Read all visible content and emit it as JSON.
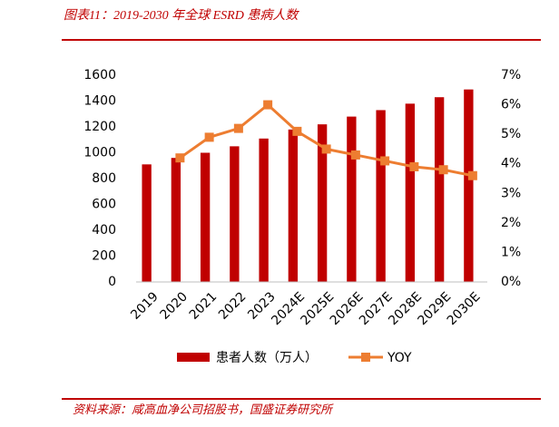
{
  "chart_data": {
    "type": "bar_line",
    "title": "图表11：2019-2030 年全球 ESRD 患病人数",
    "source": "资料来源：咸高血净公司招股书，国盛证券研究所",
    "categories": [
      "2019",
      "2020",
      "2021",
      "2022",
      "2023",
      "2024E",
      "2025E",
      "2026E",
      "2027E",
      "2028E",
      "2029E",
      "2030E"
    ],
    "series": [
      {
        "name": "患者人数（万人）",
        "type": "bar",
        "color": "#c00000",
        "values": [
          910,
          960,
          1000,
          1050,
          1110,
          1180,
          1220,
          1280,
          1330,
          1380,
          1430,
          1490
        ]
      },
      {
        "name": "YOY",
        "type": "line",
        "axis": "y2",
        "color": "#ed7d31",
        "values": [
          null,
          4.2,
          4.9,
          5.2,
          6.0,
          5.1,
          4.5,
          4.3,
          4.1,
          3.9,
          3.8,
          3.6
        ]
      }
    ],
    "ylim": [
      0,
      1600
    ],
    "yticks": [
      0,
      200,
      400,
      600,
      800,
      1000,
      1200,
      1400,
      1600
    ],
    "y2lim": [
      0,
      7
    ],
    "y2ticks": [
      {
        "value": 0,
        "label": "0%"
      },
      {
        "value": 1,
        "label": "1%"
      },
      {
        "value": 2,
        "label": "2%"
      },
      {
        "value": 3,
        "label": "3%"
      },
      {
        "value": 4,
        "label": "4%"
      },
      {
        "value": 5,
        "label": "5%"
      },
      {
        "value": 6,
        "label": "6%"
      },
      {
        "value": 7,
        "label": "7%"
      }
    ],
    "grid": false
  }
}
